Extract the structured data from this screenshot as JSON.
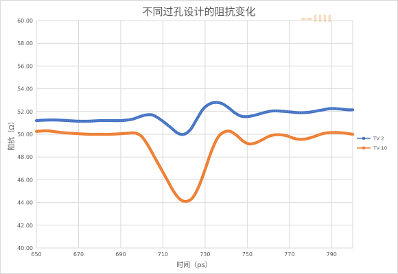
{
  "chart_data": {
    "type": "line",
    "title": "不同过孔设计的阻抗变化",
    "xlabel": "时间（ps）",
    "ylabel": "阻抗（Ω）",
    "xlim": [
      650,
      800
    ],
    "ylim": [
      40,
      60
    ],
    "x_ticks": [
      650,
      670,
      690,
      710,
      730,
      750,
      770,
      790
    ],
    "y_ticks": [
      "40.00",
      "42.00",
      "44.00",
      "46.00",
      "48.00",
      "50.00",
      "52.00",
      "54.00",
      "56.00",
      "58.00",
      "60.00"
    ],
    "grid": true,
    "legend_position": "right",
    "series": [
      {
        "name": "TV 2",
        "color": "#4472c4",
        "x": [
          650,
          655,
          660,
          665,
          670,
          675,
          680,
          685,
          690,
          693,
          696,
          699,
          702,
          705,
          708,
          711,
          714,
          717,
          720,
          723,
          726,
          729,
          732,
          735,
          738,
          741,
          744,
          747,
          750,
          753,
          756,
          759,
          762,
          765,
          768,
          771,
          774,
          777,
          780,
          783,
          786,
          789,
          792,
          795,
          798,
          800
        ],
        "y": [
          51.2,
          51.25,
          51.25,
          51.2,
          51.15,
          51.15,
          51.2,
          51.2,
          51.2,
          51.25,
          51.35,
          51.55,
          51.7,
          51.7,
          51.4,
          51.0,
          50.55,
          50.1,
          50.0,
          50.4,
          51.3,
          52.2,
          52.65,
          52.8,
          52.7,
          52.35,
          51.9,
          51.6,
          51.55,
          51.65,
          51.8,
          51.95,
          52.05,
          52.05,
          52.0,
          51.95,
          51.9,
          51.9,
          51.95,
          52.05,
          52.15,
          52.25,
          52.25,
          52.2,
          52.15,
          52.15
        ]
      },
      {
        "name": "TV 10",
        "color": "#ed7d31",
        "x": [
          650,
          655,
          660,
          665,
          670,
          675,
          680,
          685,
          690,
          694,
          697,
          700,
          703,
          706,
          709,
          712,
          715,
          718,
          721,
          724,
          727,
          730,
          733,
          736,
          739,
          742,
          745,
          748,
          751,
          754,
          757,
          760,
          763,
          766,
          769,
          772,
          775,
          778,
          781,
          784,
          787,
          790,
          793,
          796,
          800
        ],
        "y": [
          50.25,
          50.3,
          50.2,
          50.1,
          50.05,
          50.0,
          50.0,
          50.0,
          50.05,
          50.1,
          50.1,
          49.8,
          49.0,
          48.0,
          47.0,
          46.0,
          45.0,
          44.3,
          44.1,
          44.4,
          45.4,
          46.9,
          48.5,
          49.7,
          50.2,
          50.25,
          49.9,
          49.4,
          49.15,
          49.25,
          49.5,
          49.8,
          49.95,
          49.95,
          49.85,
          49.65,
          49.55,
          49.6,
          49.75,
          49.95,
          50.1,
          50.15,
          50.15,
          50.1,
          50.0
        ]
      }
    ]
  },
  "watermark_text": "▬▬ ▌▌▌▌"
}
